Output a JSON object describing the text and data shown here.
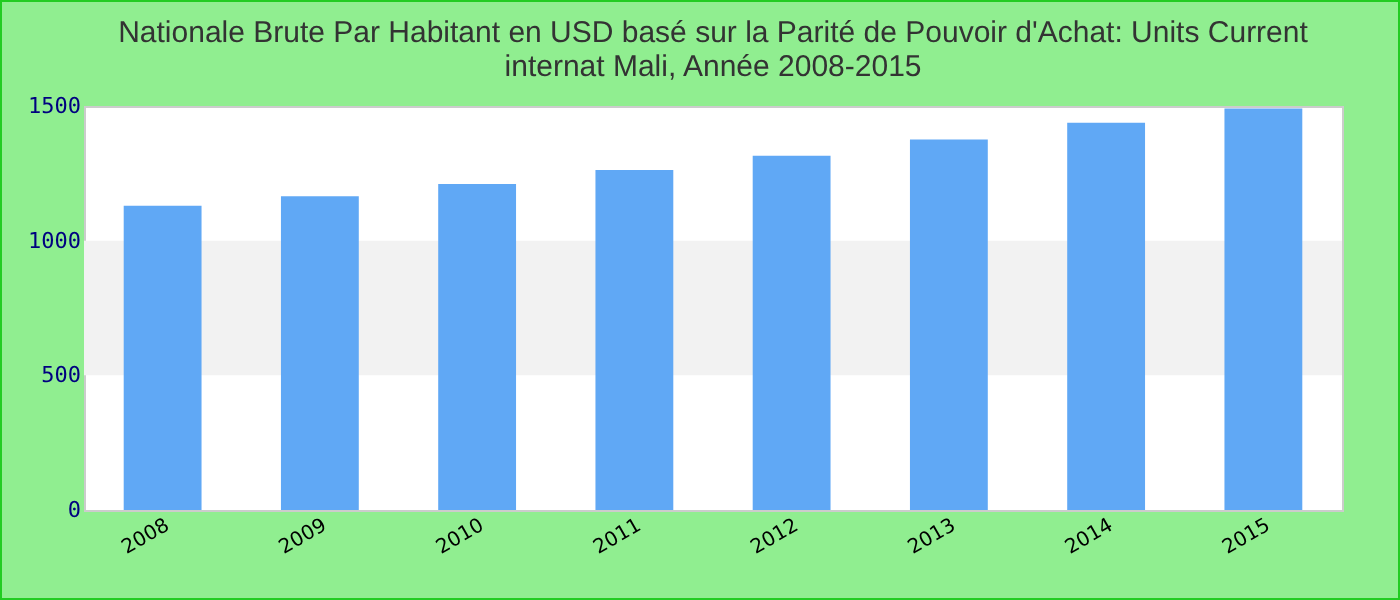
{
  "chart_data": {
    "type": "bar",
    "title": "Nationale Brute Par Habitant en USD basé sur la Parité de Pouvoir d'Achat: Units Current internat Mali, Année 2008-2015",
    "categories": [
      "2008",
      "2009",
      "2010",
      "2011",
      "2012",
      "2013",
      "2014",
      "2015"
    ],
    "values": [
      1130,
      1165,
      1210,
      1262,
      1315,
      1376,
      1438,
      1491
    ],
    "color": "#60a8f5",
    "ylim": [
      0,
      1500
    ],
    "yticks": [
      0,
      500,
      1000,
      1500
    ],
    "grid": false,
    "bands": [
      {
        "axis": "y",
        "from": 500,
        "to": 1000,
        "color": "#f2f2f2"
      }
    ]
  }
}
